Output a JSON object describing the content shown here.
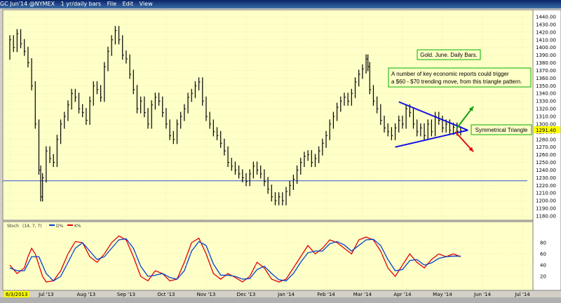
{
  "window": {
    "title_parts": [
      "GC Jun'14 @NYMEX",
      "1 yr/daily bars",
      "File",
      "Edit",
      "View"
    ]
  },
  "colors": {
    "panel_bg": "#ffffc8",
    "bars": "#000000",
    "triangle": "#1010e0",
    "up_arrow": "#10a010",
    "down_arrow": "#e01010",
    "label_border": "#00b000",
    "stoch_fast": "#e00000",
    "stoch_slow": "#0040d0",
    "last_price_bg": "#ffff00"
  },
  "chart_data": {
    "type": "ohlc",
    "symbol": "GC Jun'14 @NYMEX",
    "interval": "1 yr/daily bars",
    "price_axis": {
      "min": 1180,
      "max": 1440,
      "step": 10,
      "ticks": [
        "1440.00",
        "1430.00",
        "1420.00",
        "1410.00",
        "1400.00",
        "1390.00",
        "1380.00",
        "1370.00",
        "1360.00",
        "1350.00",
        "1340.00",
        "1330.00",
        "1320.00",
        "1310.00",
        "1300.00",
        "1290.00",
        "1280.00",
        "1270.00",
        "1260.00",
        "1250.00",
        "1240.00",
        "1230.00",
        "1220.00",
        "1210.00",
        "1200.00",
        "1190.00",
        "1180.00"
      ]
    },
    "last_price": "1291.40",
    "x_axis": {
      "month_labels": [
        "6/3/2013",
        "Jul '13",
        "Aug '13",
        "Sep '13",
        "Oct '13",
        "Nov '13",
        "Dec '13",
        "Jan '14",
        "Feb '14",
        "Mar '14",
        "Apr '14",
        "May '14",
        "Jun '14",
        "Jul '14"
      ],
      "month_positions": [
        0,
        20,
        42,
        64,
        86,
        108,
        130,
        152,
        174,
        194,
        216,
        238,
        260,
        282
      ],
      "total_days": 282
    },
    "support_line": 1226,
    "series": [
      {
        "d": 0,
        "v": 1390
      },
      {
        "d": 2,
        "v": 1410
      },
      {
        "d": 4,
        "v": 1400
      },
      {
        "d": 6,
        "v": 1418
      },
      {
        "d": 8,
        "v": 1405
      },
      {
        "d": 10,
        "v": 1395
      },
      {
        "d": 12,
        "v": 1380
      },
      {
        "d": 14,
        "v": 1350
      },
      {
        "d": 16,
        "v": 1300
      },
      {
        "d": 17,
        "v": 1240
      },
      {
        "d": 18,
        "v": 1205
      },
      {
        "d": 20,
        "v": 1230
      },
      {
        "d": 22,
        "v": 1265
      },
      {
        "d": 24,
        "v": 1255
      },
      {
        "d": 26,
        "v": 1250
      },
      {
        "d": 28,
        "v": 1280
      },
      {
        "d": 30,
        "v": 1300
      },
      {
        "d": 32,
        "v": 1310
      },
      {
        "d": 34,
        "v": 1325
      },
      {
        "d": 36,
        "v": 1340
      },
      {
        "d": 38,
        "v": 1335
      },
      {
        "d": 40,
        "v": 1320
      },
      {
        "d": 42,
        "v": 1315
      },
      {
        "d": 44,
        "v": 1305
      },
      {
        "d": 46,
        "v": 1330
      },
      {
        "d": 48,
        "v": 1350
      },
      {
        "d": 50,
        "v": 1345
      },
      {
        "d": 52,
        "v": 1335
      },
      {
        "d": 54,
        "v": 1375
      },
      {
        "d": 56,
        "v": 1395
      },
      {
        "d": 58,
        "v": 1410
      },
      {
        "d": 60,
        "v": 1422
      },
      {
        "d": 62,
        "v": 1410
      },
      {
        "d": 64,
        "v": 1390
      },
      {
        "d": 66,
        "v": 1385
      },
      {
        "d": 68,
        "v": 1365
      },
      {
        "d": 70,
        "v": 1345
      },
      {
        "d": 72,
        "v": 1320
      },
      {
        "d": 74,
        "v": 1330
      },
      {
        "d": 76,
        "v": 1315
      },
      {
        "d": 78,
        "v": 1300
      },
      {
        "d": 80,
        "v": 1325
      },
      {
        "d": 82,
        "v": 1335
      },
      {
        "d": 84,
        "v": 1330
      },
      {
        "d": 86,
        "v": 1315
      },
      {
        "d": 88,
        "v": 1300
      },
      {
        "d": 90,
        "v": 1285
      },
      {
        "d": 92,
        "v": 1280
      },
      {
        "d": 94,
        "v": 1300
      },
      {
        "d": 96,
        "v": 1310
      },
      {
        "d": 98,
        "v": 1320
      },
      {
        "d": 100,
        "v": 1335
      },
      {
        "d": 102,
        "v": 1340
      },
      {
        "d": 104,
        "v": 1350
      },
      {
        "d": 106,
        "v": 1355
      },
      {
        "d": 108,
        "v": 1330
      },
      {
        "d": 110,
        "v": 1310
      },
      {
        "d": 112,
        "v": 1300
      },
      {
        "d": 114,
        "v": 1290
      },
      {
        "d": 116,
        "v": 1285
      },
      {
        "d": 118,
        "v": 1275
      },
      {
        "d": 120,
        "v": 1265
      },
      {
        "d": 122,
        "v": 1250
      },
      {
        "d": 124,
        "v": 1245
      },
      {
        "d": 126,
        "v": 1240
      },
      {
        "d": 128,
        "v": 1235
      },
      {
        "d": 130,
        "v": 1230
      },
      {
        "d": 132,
        "v": 1225
      },
      {
        "d": 134,
        "v": 1235
      },
      {
        "d": 136,
        "v": 1245
      },
      {
        "d": 138,
        "v": 1240
      },
      {
        "d": 140,
        "v": 1235
      },
      {
        "d": 142,
        "v": 1225
      },
      {
        "d": 144,
        "v": 1215
      },
      {
        "d": 146,
        "v": 1205
      },
      {
        "d": 148,
        "v": 1200
      },
      {
        "d": 150,
        "v": 1205
      },
      {
        "d": 152,
        "v": 1200
      },
      {
        "d": 154,
        "v": 1212
      },
      {
        "d": 156,
        "v": 1220
      },
      {
        "d": 158,
        "v": 1228
      },
      {
        "d": 160,
        "v": 1240
      },
      {
        "d": 162,
        "v": 1250
      },
      {
        "d": 164,
        "v": 1258
      },
      {
        "d": 166,
        "v": 1260
      },
      {
        "d": 168,
        "v": 1250
      },
      {
        "d": 170,
        "v": 1255
      },
      {
        "d": 172,
        "v": 1265
      },
      {
        "d": 174,
        "v": 1275
      },
      {
        "d": 176,
        "v": 1285
      },
      {
        "d": 178,
        "v": 1300
      },
      {
        "d": 180,
        "v": 1310
      },
      {
        "d": 182,
        "v": 1322
      },
      {
        "d": 184,
        "v": 1330
      },
      {
        "d": 186,
        "v": 1335
      },
      {
        "d": 188,
        "v": 1330
      },
      {
        "d": 190,
        "v": 1340
      },
      {
        "d": 192,
        "v": 1355
      },
      {
        "d": 194,
        "v": 1365
      },
      {
        "d": 196,
        "v": 1372
      },
      {
        "d": 197,
        "v": 1385
      },
      {
        "d": 198,
        "v": 1375
      },
      {
        "d": 200,
        "v": 1345
      },
      {
        "d": 202,
        "v": 1330
      },
      {
        "d": 204,
        "v": 1320
      },
      {
        "d": 206,
        "v": 1305
      },
      {
        "d": 208,
        "v": 1295
      },
      {
        "d": 210,
        "v": 1290
      },
      {
        "d": 212,
        "v": 1285
      },
      {
        "d": 214,
        "v": 1295
      },
      {
        "d": 216,
        "v": 1305
      },
      {
        "d": 218,
        "v": 1300
      },
      {
        "d": 220,
        "v": 1320
      },
      {
        "d": 222,
        "v": 1315
      },
      {
        "d": 224,
        "v": 1300
      },
      {
        "d": 226,
        "v": 1290
      },
      {
        "d": 228,
        "v": 1295
      },
      {
        "d": 230,
        "v": 1285
      },
      {
        "d": 232,
        "v": 1300
      },
      {
        "d": 234,
        "v": 1290
      },
      {
        "d": 236,
        "v": 1310
      },
      {
        "d": 238,
        "v": 1305
      },
      {
        "d": 240,
        "v": 1295
      },
      {
        "d": 242,
        "v": 1300
      },
      {
        "d": 244,
        "v": 1292
      },
      {
        "d": 246,
        "v": 1296
      },
      {
        "d": 248,
        "v": 1291
      }
    ],
    "bar_range": 12,
    "triangle": {
      "upper": [
        {
          "d": 214,
          "v": 1329
        },
        {
          "d": 252,
          "v": 1292
        }
      ],
      "lower": [
        {
          "d": 212,
          "v": 1270
        },
        {
          "d": 252,
          "v": 1292
        }
      ],
      "up_arrow": [
        {
          "d": 246,
          "v": 1295
        },
        {
          "d": 255,
          "v": 1323
        }
      ],
      "down_arrow": [
        {
          "d": 245,
          "v": 1290
        },
        {
          "d": 255,
          "v": 1264
        }
      ]
    },
    "annotations": {
      "title": "Gold. June. Daily Bars.",
      "comment_line1": "A number of key economic reports could trigger",
      "comment_line2": "a $60 - $70 trending move, from this triangle pattern.",
      "pattern_label": "Symmetrical Triangle"
    },
    "stochastic": {
      "label": "Stoch",
      "params": "(14, 7, 7)",
      "legend": [
        "D%",
        "K%"
      ],
      "ylim": [
        0,
        100
      ],
      "ticks": [
        "80",
        "60",
        "40",
        "20"
      ],
      "k": [
        {
          "d": 0,
          "v": 40
        },
        {
          "d": 4,
          "v": 25
        },
        {
          "d": 8,
          "v": 35
        },
        {
          "d": 10,
          "v": 55
        },
        {
          "d": 12,
          "v": 70
        },
        {
          "d": 14,
          "v": 60
        },
        {
          "d": 16,
          "v": 40
        },
        {
          "d": 18,
          "v": 20
        },
        {
          "d": 20,
          "v": 10
        },
        {
          "d": 24,
          "v": 12
        },
        {
          "d": 28,
          "v": 30
        },
        {
          "d": 32,
          "v": 60
        },
        {
          "d": 36,
          "v": 82
        },
        {
          "d": 40,
          "v": 80
        },
        {
          "d": 44,
          "v": 55
        },
        {
          "d": 48,
          "v": 45
        },
        {
          "d": 52,
          "v": 60
        },
        {
          "d": 56,
          "v": 80
        },
        {
          "d": 60,
          "v": 92
        },
        {
          "d": 64,
          "v": 85
        },
        {
          "d": 68,
          "v": 55
        },
        {
          "d": 72,
          "v": 20
        },
        {
          "d": 76,
          "v": 12
        },
        {
          "d": 80,
          "v": 30
        },
        {
          "d": 84,
          "v": 25
        },
        {
          "d": 88,
          "v": 12
        },
        {
          "d": 92,
          "v": 15
        },
        {
          "d": 96,
          "v": 45
        },
        {
          "d": 100,
          "v": 80
        },
        {
          "d": 104,
          "v": 88
        },
        {
          "d": 108,
          "v": 60
        },
        {
          "d": 112,
          "v": 25
        },
        {
          "d": 116,
          "v": 15
        },
        {
          "d": 120,
          "v": 25
        },
        {
          "d": 124,
          "v": 18
        },
        {
          "d": 128,
          "v": 10
        },
        {
          "d": 132,
          "v": 20
        },
        {
          "d": 136,
          "v": 45
        },
        {
          "d": 140,
          "v": 35
        },
        {
          "d": 144,
          "v": 15
        },
        {
          "d": 148,
          "v": 10
        },
        {
          "d": 152,
          "v": 15
        },
        {
          "d": 156,
          "v": 35
        },
        {
          "d": 160,
          "v": 55
        },
        {
          "d": 164,
          "v": 75
        },
        {
          "d": 168,
          "v": 60
        },
        {
          "d": 172,
          "v": 70
        },
        {
          "d": 176,
          "v": 85
        },
        {
          "d": 180,
          "v": 80
        },
        {
          "d": 184,
          "v": 70
        },
        {
          "d": 188,
          "v": 60
        },
        {
          "d": 192,
          "v": 85
        },
        {
          "d": 196,
          "v": 90
        },
        {
          "d": 200,
          "v": 85
        },
        {
          "d": 204,
          "v": 65
        },
        {
          "d": 208,
          "v": 35
        },
        {
          "d": 212,
          "v": 20
        },
        {
          "d": 216,
          "v": 40
        },
        {
          "d": 220,
          "v": 60
        },
        {
          "d": 224,
          "v": 45
        },
        {
          "d": 228,
          "v": 35
        },
        {
          "d": 232,
          "v": 50
        },
        {
          "d": 236,
          "v": 60
        },
        {
          "d": 240,
          "v": 55
        },
        {
          "d": 244,
          "v": 60
        },
        {
          "d": 248,
          "v": 55
        }
      ],
      "d": [
        {
          "d": 0,
          "v": 35
        },
        {
          "d": 4,
          "v": 30
        },
        {
          "d": 8,
          "v": 30
        },
        {
          "d": 12,
          "v": 55
        },
        {
          "d": 16,
          "v": 55
        },
        {
          "d": 20,
          "v": 25
        },
        {
          "d": 24,
          "v": 12
        },
        {
          "d": 28,
          "v": 20
        },
        {
          "d": 32,
          "v": 45
        },
        {
          "d": 36,
          "v": 70
        },
        {
          "d": 40,
          "v": 80
        },
        {
          "d": 44,
          "v": 65
        },
        {
          "d": 48,
          "v": 50
        },
        {
          "d": 52,
          "v": 55
        },
        {
          "d": 56,
          "v": 70
        },
        {
          "d": 60,
          "v": 85
        },
        {
          "d": 64,
          "v": 87
        },
        {
          "d": 68,
          "v": 70
        },
        {
          "d": 72,
          "v": 38
        },
        {
          "d": 76,
          "v": 20
        },
        {
          "d": 80,
          "v": 22
        },
        {
          "d": 84,
          "v": 25
        },
        {
          "d": 88,
          "v": 18
        },
        {
          "d": 92,
          "v": 15
        },
        {
          "d": 96,
          "v": 30
        },
        {
          "d": 100,
          "v": 65
        },
        {
          "d": 104,
          "v": 82
        },
        {
          "d": 108,
          "v": 75
        },
        {
          "d": 112,
          "v": 42
        },
        {
          "d": 116,
          "v": 22
        },
        {
          "d": 120,
          "v": 22
        },
        {
          "d": 124,
          "v": 20
        },
        {
          "d": 128,
          "v": 15
        },
        {
          "d": 132,
          "v": 16
        },
        {
          "d": 136,
          "v": 32
        },
        {
          "d": 140,
          "v": 38
        },
        {
          "d": 144,
          "v": 25
        },
        {
          "d": 148,
          "v": 14
        },
        {
          "d": 152,
          "v": 12
        },
        {
          "d": 156,
          "v": 25
        },
        {
          "d": 160,
          "v": 45
        },
        {
          "d": 164,
          "v": 62
        },
        {
          "d": 168,
          "v": 65
        },
        {
          "d": 172,
          "v": 65
        },
        {
          "d": 176,
          "v": 78
        },
        {
          "d": 180,
          "v": 82
        },
        {
          "d": 184,
          "v": 76
        },
        {
          "d": 188,
          "v": 65
        },
        {
          "d": 192,
          "v": 75
        },
        {
          "d": 196,
          "v": 85
        },
        {
          "d": 200,
          "v": 86
        },
        {
          "d": 204,
          "v": 75
        },
        {
          "d": 208,
          "v": 50
        },
        {
          "d": 212,
          "v": 30
        },
        {
          "d": 216,
          "v": 32
        },
        {
          "d": 220,
          "v": 48
        },
        {
          "d": 224,
          "v": 50
        },
        {
          "d": 228,
          "v": 40
        },
        {
          "d": 232,
          "v": 44
        },
        {
          "d": 236,
          "v": 52
        },
        {
          "d": 240,
          "v": 55
        },
        {
          "d": 244,
          "v": 56
        },
        {
          "d": 248,
          "v": 56
        }
      ]
    }
  }
}
